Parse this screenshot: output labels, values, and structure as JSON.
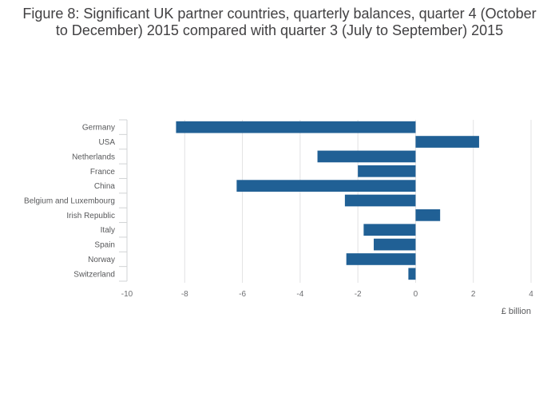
{
  "chart_data": {
    "type": "bar",
    "orientation": "horizontal",
    "title": "Figure 8: Significant UK partner countries, quarterly balances, quarter 4 (October to December) 2015 compared with quarter 3 (July to September) 2015",
    "xlabel": "£ billion",
    "ylabel": "",
    "categories": [
      "Germany",
      "USA",
      "Netherlands",
      "France",
      "China",
      "Belgium and Luxembourg",
      "Irish Republic",
      "Italy",
      "Spain",
      "Norway",
      "Switzerland"
    ],
    "values": [
      -8.3,
      2.2,
      -3.4,
      -2.0,
      -6.2,
      -2.45,
      0.85,
      -1.8,
      -1.45,
      -2.4,
      -0.25
    ],
    "xlim": [
      -10,
      4
    ],
    "xticks": [
      -10,
      -8,
      -6,
      -4,
      -2,
      0,
      2,
      4
    ],
    "grid": "vertical",
    "bar_color": "#206095"
  }
}
